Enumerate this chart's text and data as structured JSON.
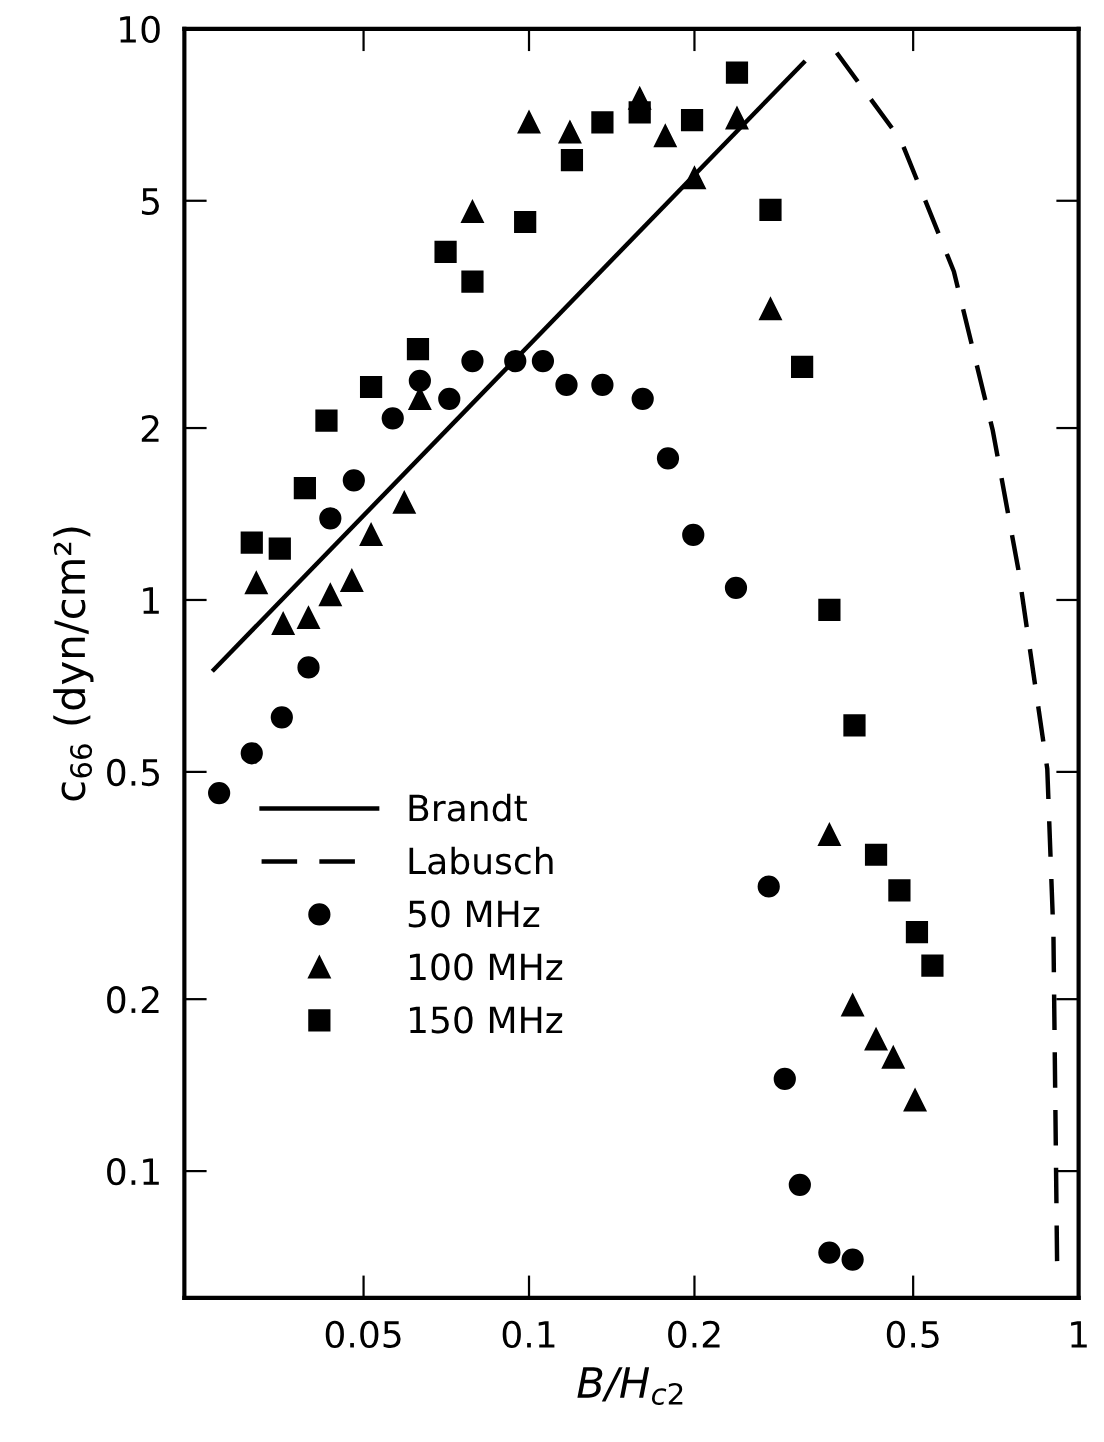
{
  "chart_data": {
    "type": "scatter",
    "xlabel": "B/H$_{c2}$",
    "ylabel": "c$_{66}$ (dyn/cm²)",
    "log": "xy",
    "grid": false,
    "legend": "bottom left",
    "xlim": [
      0.0236,
      1.0
    ],
    "ylim": [
      0.06,
      10
    ],
    "xticks": [
      0.05,
      0.1,
      0.2,
      0.5,
      1
    ],
    "yticks": [
      0.1,
      0.2,
      0.5,
      1,
      2,
      5,
      10
    ],
    "series": [
      {
        "name": "Brandt",
        "type": "line",
        "line_style": "solid",
        "marker": "none",
        "color": "#000000",
        "x": [
          0.0267,
          0.316
        ],
        "values": [
          0.755,
          8.73
        ]
      },
      {
        "name": "Labusch",
        "type": "line",
        "line_style": "dashed",
        "marker": "none",
        "color": "#000000",
        "x": [
          0.363,
          0.475,
          0.593,
          0.698,
          0.777,
          0.877,
          0.9,
          0.914
        ],
        "values": [
          9.08,
          6.38,
          3.76,
          1.98,
          1.13,
          0.506,
          0.258,
          0.068
        ]
      },
      {
        "name": "50 MHz",
        "marker": "circle",
        "color": "#000000",
        "x": [
          0.0273,
          0.0313,
          0.0355,
          0.0397,
          0.0435,
          0.048,
          0.0565,
          0.0633,
          0.0716,
          0.0789,
          0.0944,
          0.106,
          0.117,
          0.136,
          0.161,
          0.179,
          0.199,
          0.238,
          0.273,
          0.292,
          0.311,
          0.352,
          0.388
        ],
        "values": [
          0.459,
          0.539,
          0.623,
          0.762,
          1.39,
          1.62,
          2.08,
          2.42,
          2.25,
          2.62,
          2.62,
          2.62,
          2.38,
          2.38,
          2.25,
          1.77,
          1.3,
          1.05,
          0.315,
          0.145,
          0.0946,
          0.072,
          0.07
        ]
      },
      {
        "name": "100 MHz",
        "marker": "triangle",
        "color": "#000000",
        "x": [
          0.0319,
          0.0357,
          0.0397,
          0.0435,
          0.0476,
          0.0516,
          0.0593,
          0.0633,
          0.0789,
          0.1,
          0.1187,
          0.136,
          0.159,
          0.177,
          0.2,
          0.239,
          0.275,
          0.352,
          0.388,
          0.428,
          0.46,
          0.504
        ],
        "values": [
          1.07,
          0.908,
          0.93,
          1.02,
          1.08,
          1.3,
          1.48,
          2.25,
          4.78,
          6.86,
          6.59,
          null,
          7.55,
          6.49,
          5.48,
          6.97,
          3.23,
          0.388,
          0.195,
          0.17,
          0.158,
          0.133
        ]
      },
      {
        "name": "150 MHz",
        "marker": "square",
        "color": "#000000",
        "x": [
          0.0313,
          0.0352,
          0.0391,
          0.0428,
          0.0516,
          0.0628,
          0.0705,
          0.0789,
          0.0984,
          0.1197,
          0.136,
          0.159,
          0.198,
          0.239,
          0.275,
          0.314,
          0.352,
          0.391,
          0.428,
          0.472,
          0.508,
          0.542
        ],
        "values": [
          1.26,
          1.23,
          1.57,
          2.06,
          2.36,
          2.75,
          4.07,
          3.61,
          4.59,
          5.89,
          6.86,
          7.14,
          6.92,
          8.38,
          4.82,
          2.56,
          0.961,
          0.603,
          0.358,
          0.31,
          0.262,
          0.229
        ]
      }
    ]
  }
}
